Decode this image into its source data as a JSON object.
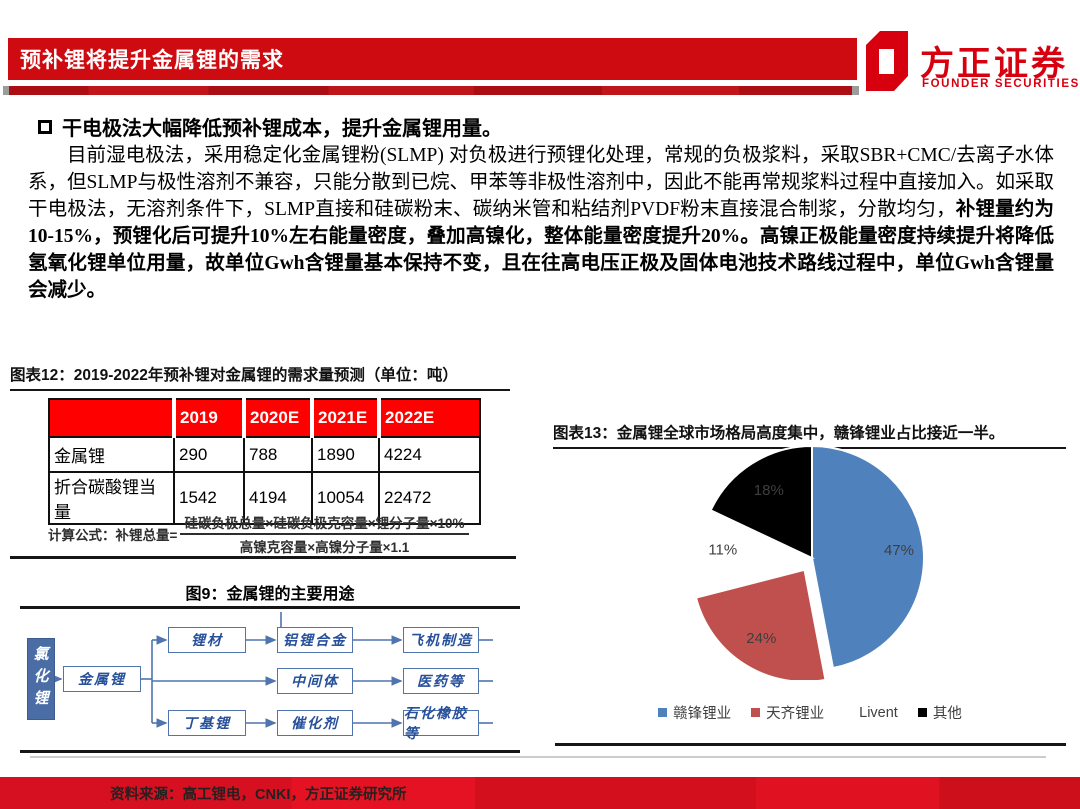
{
  "header": {
    "title": "预补锂将提升金属锂的需求",
    "logo_cn": "方正证券",
    "logo_en": "FOUNDER SECURITIES",
    "brand_red": "#d7000f",
    "bar_red": "#ce0b10"
  },
  "section": {
    "bullet_icon": "square-outline",
    "heading": "干电极法大幅降低预补锂成本，提升金属锂用量。"
  },
  "paragraph": {
    "normal": "目前湿电极法，采用稳定化金属锂粉(SLMP) 对负极进行预锂化处理，常规的负极浆料，采取SBR+CMC/去离子水体系，但SLMP与极性溶剂不兼容，只能分散到已烷、甲苯等非极性溶剂中，因此不能再常规浆料过程中直接加入。如采取干电极法，无溶剂条件下，SLMP直接和硅碳粉末、碳纳米管和粘结剂PVDF粉末直接混合制浆，分散均匀，",
    "bold": "补锂量约为10-15%，预锂化后可提升10%左右能量密度，叠加高镍化，整体能量密度提升20%。高镍正极能量密度持续提升将降低氢氧化锂单位用量，故单位Gwh含锂量基本保持不变，且在往高电压正极及固体电池技术路线过程中，单位Gwh含锂量会减少。"
  },
  "table12": {
    "title": "图表12：2019-2022年预补锂对金属锂的需求量预测（单位：吨）",
    "headers": [
      "",
      "2019",
      "2020E",
      "2021E",
      "2022E"
    ],
    "rows": [
      {
        "label": "金属锂",
        "values": [
          "290",
          "788",
          "1890",
          "4224"
        ]
      },
      {
        "label": "折合碳酸锂当量",
        "values": [
          "1542",
          "4194",
          "10054",
          "22472"
        ]
      }
    ],
    "header_red": "#fe0000",
    "formula_label": "计算公式：补锂总量=",
    "formula_numerator": "硅碳负极总量×硅碳负极克容量×锂分子量×10%",
    "formula_denominator": "高镍克容量×高镍分子量×1.1"
  },
  "figure9": {
    "title": "图9：金属锂的主要用途",
    "nodes": {
      "source": "氯化锂",
      "root": "金属锂",
      "b1": "锂材",
      "b1a": "铝锂合金",
      "b1b": "飞机制造",
      "b2": "中间体",
      "b2a": "医药等",
      "b3": "丁基锂",
      "b3a": "催化剂",
      "b3b": "石化橡胶等"
    },
    "box_blue": "#4a6da6"
  },
  "chart13_title": "图表13：金属锂全球市场格局高度集中，赣锋锂业占比接近一半。",
  "chart_data": [
    {
      "type": "pie",
      "title": "金属锂全球市场格局高度集中，赣锋锂业占比接近一半。",
      "labels": [
        "赣锋锂业",
        "天齐锂业",
        "Livent",
        "其他"
      ],
      "values": [
        47,
        24,
        11,
        18
      ],
      "value_labels": [
        "47%",
        "24%",
        "11%",
        "18%"
      ],
      "colors": [
        "#4F81BD",
        "#C0504D",
        "#FFFFFF",
        "#000000"
      ],
      "start_angle": "12-oclock",
      "direction": "clockwise",
      "exploded_index": 1,
      "legend_position": "bottom"
    },
    {
      "type": "table",
      "title": "2019-2022年预补锂对金属锂的需求量预测（单位：吨）",
      "categories": [
        "2019",
        "2020E",
        "2021E",
        "2022E"
      ],
      "series": [
        {
          "name": "金属锂",
          "values": [
            290,
            788,
            1890,
            4224
          ]
        },
        {
          "name": "折合碳酸锂当量",
          "values": [
            1542,
            4194,
            10054,
            22472
          ]
        }
      ]
    }
  ],
  "footer": {
    "source": "资料来源：高工锂电，CNKI，方正证券研究所"
  }
}
